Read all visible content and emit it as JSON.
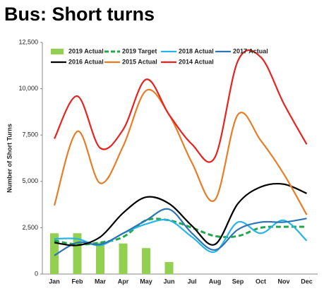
{
  "chart_data": {
    "type": "line",
    "title": "Bus: Short turns",
    "y_label": "Number of Short Turns",
    "categories": [
      "Jan",
      "Feb",
      "Mar",
      "Apr",
      "May",
      "Jun",
      "Jul",
      "Aug",
      "Sep",
      "Oct",
      "Nov",
      "Dec"
    ],
    "ylim": [
      0,
      12500
    ],
    "yticks": [
      0,
      {
        "value": 2500,
        "label": "2,500"
      },
      {
        "value": 5000,
        "label": "5,000"
      },
      {
        "value": 7500,
        "label": "7,500"
      },
      {
        "value": 10000,
        "label": "10,000"
      },
      {
        "value": 12500,
        "label": "12,500"
      }
    ],
    "grid": false,
    "series": [
      {
        "name": "2019 Actual",
        "kind": "bar",
        "color": "#92d050",
        "values": [
          2200,
          2200,
          1700,
          1650,
          1400,
          650,
          null,
          null,
          null,
          null,
          null,
          null
        ]
      },
      {
        "name": "2019 Target",
        "kind": "line",
        "dashed": true,
        "color": "#22a84a",
        "values": [
          1800,
          1600,
          1700,
          2000,
          2900,
          2900,
          2500,
          2050,
          2050,
          2500,
          2550,
          2550
        ]
      },
      {
        "name": "2018 Actual",
        "kind": "line",
        "color": "#26b5e8",
        "values": [
          1900,
          1900,
          1550,
          2200,
          2700,
          2900,
          2000,
          1200,
          2800,
          2200,
          2900,
          1800
        ]
      },
      {
        "name": "2017 Actual",
        "kind": "line",
        "color": "#2e75b6",
        "values": [
          1000,
          1700,
          1600,
          2200,
          2900,
          3500,
          2200,
          1300,
          2400,
          2800,
          2800,
          3000
        ]
      },
      {
        "name": "2016 Actual",
        "kind": "line",
        "color": "#000000",
        "values": [
          1700,
          1550,
          2000,
          3300,
          4150,
          3800,
          2600,
          1600,
          3800,
          4700,
          4850,
          4350
        ]
      },
      {
        "name": "2015 Actual",
        "kind": "line",
        "color": "#e97c26",
        "values": [
          3700,
          7700,
          4900,
          6900,
          9900,
          8600,
          6000,
          4000,
          8600,
          7200,
          5400,
          3200
        ]
      },
      {
        "name": "2014 Actual",
        "kind": "line",
        "color": "#e8221e",
        "values": [
          7300,
          9600,
          6800,
          7800,
          10500,
          8600,
          7000,
          6300,
          11500,
          11700,
          9200,
          7000
        ]
      }
    ]
  }
}
